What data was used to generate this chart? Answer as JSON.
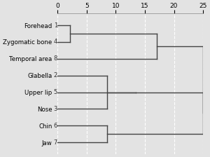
{
  "labels": [
    "Forehead",
    "Zygomatic bone",
    "Temporal area",
    "Glabella",
    "Upper lip",
    "Nose",
    "Chin",
    "Jaw"
  ],
  "label_ids": [
    "1",
    "4",
    "8",
    "2",
    "5",
    "3",
    "6",
    "7"
  ],
  "y_positions": [
    1,
    2,
    3,
    4,
    5,
    6,
    7,
    8
  ],
  "xlim": [
    0,
    25
  ],
  "xticks": [
    0,
    5,
    10,
    15,
    20,
    25
  ],
  "bg_color": "#e3e3e3",
  "line_color": "#444444",
  "grid_color": "#ffffff",
  "merges": {
    "forehead_zygomatic_dist": 2.2,
    "forehead_zygomatic_temporal_dist": 17.0,
    "glabella_nose_dist": 8.5,
    "glabella_nose_upperlip_dist": 13.5,
    "chin_jaw_dist": 8.5,
    "big_merge_dist": 25.0
  }
}
